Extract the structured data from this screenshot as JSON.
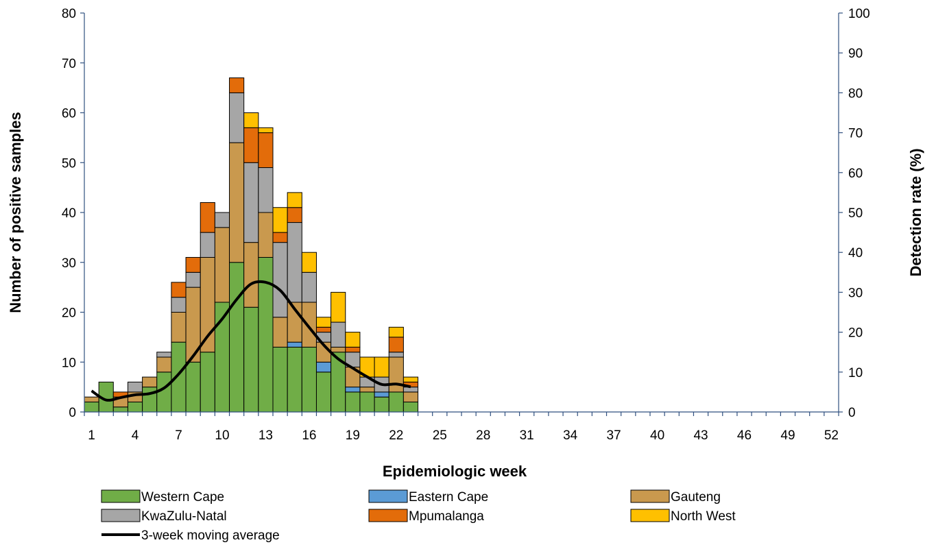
{
  "chart_data": {
    "type": "bar",
    "stacked": true,
    "xlabel": "Epidemiologic week",
    "ylabel": "Number of positive samples",
    "y2label": "Detection rate (%)",
    "ylim": [
      0,
      80
    ],
    "y2lim": [
      0,
      100
    ],
    "yticks": [
      0,
      10,
      20,
      30,
      40,
      50,
      60,
      70,
      80
    ],
    "y2ticks": [
      0,
      10,
      20,
      30,
      40,
      50,
      60,
      70,
      80,
      90,
      100
    ],
    "xrange": [
      1,
      52
    ],
    "xticks": [
      1,
      4,
      7,
      10,
      13,
      16,
      19,
      22,
      25,
      28,
      31,
      34,
      37,
      40,
      43,
      46,
      49,
      52
    ],
    "weeks": [
      1,
      2,
      3,
      4,
      5,
      6,
      7,
      8,
      9,
      10,
      11,
      12,
      13,
      14,
      15,
      16,
      17,
      18,
      19,
      20,
      21,
      22,
      23
    ],
    "grid": false,
    "legend_position": "bottom",
    "series": [
      {
        "name": "Western Cape",
        "color": "#70AD47",
        "values": [
          2,
          6,
          1,
          2,
          5,
          8,
          14,
          10,
          12,
          22,
          30,
          21,
          31,
          13,
          13,
          13,
          8,
          12,
          4,
          4,
          3,
          4,
          2
        ]
      },
      {
        "name": "Eastern Cape",
        "color": "#5B9BD5",
        "values": [
          0,
          0,
          0,
          0,
          0,
          0,
          0,
          0,
          0,
          0,
          0,
          0,
          0,
          0,
          1,
          0,
          2,
          0,
          1,
          0,
          1,
          0,
          0
        ]
      },
      {
        "name": "Gauteng",
        "color": "#C9994E",
        "values": [
          1,
          0,
          2,
          2,
          2,
          3,
          6,
          15,
          19,
          15,
          24,
          13,
          9,
          6,
          8,
          9,
          4,
          1,
          4,
          1,
          0,
          7,
          2
        ]
      },
      {
        "name": "KwaZulu-Natal",
        "color": "#A6A6A6",
        "values": [
          0,
          0,
          0,
          2,
          0,
          1,
          3,
          3,
          5,
          3,
          10,
          16,
          9,
          15,
          16,
          6,
          2,
          5,
          3,
          2,
          3,
          1,
          1
        ]
      },
      {
        "name": "Mpumalanga",
        "color": "#E36C0A",
        "values": [
          0,
          0,
          1,
          0,
          0,
          0,
          3,
          3,
          6,
          0,
          3,
          7,
          7,
          2,
          3,
          0,
          1,
          0,
          1,
          0,
          0,
          3,
          1
        ]
      },
      {
        "name": "North West",
        "color": "#FFC000",
        "values": [
          0,
          0,
          0,
          0,
          0,
          0,
          0,
          0,
          0,
          0,
          0,
          3,
          1,
          5,
          3,
          4,
          2,
          6,
          3,
          4,
          4,
          2,
          1
        ]
      }
    ],
    "line": {
      "name": "3-week moving average",
      "axis": "right",
      "color": "#000000",
      "x": [
        1,
        2,
        3,
        4,
        5,
        6,
        7,
        8,
        9,
        10,
        11,
        12,
        13,
        14,
        15,
        16,
        17,
        18,
        19,
        20,
        21,
        22,
        23
      ],
      "values": [
        5.3,
        3.0,
        3.6,
        4.3,
        4.6,
        6.0,
        9.5,
        14.0,
        19.0,
        23.3,
        28.2,
        32.1,
        32.5,
        30.5,
        25.8,
        21.2,
        16.8,
        13.3,
        11.0,
        8.8,
        6.9,
        7.0,
        6.3
      ]
    }
  }
}
